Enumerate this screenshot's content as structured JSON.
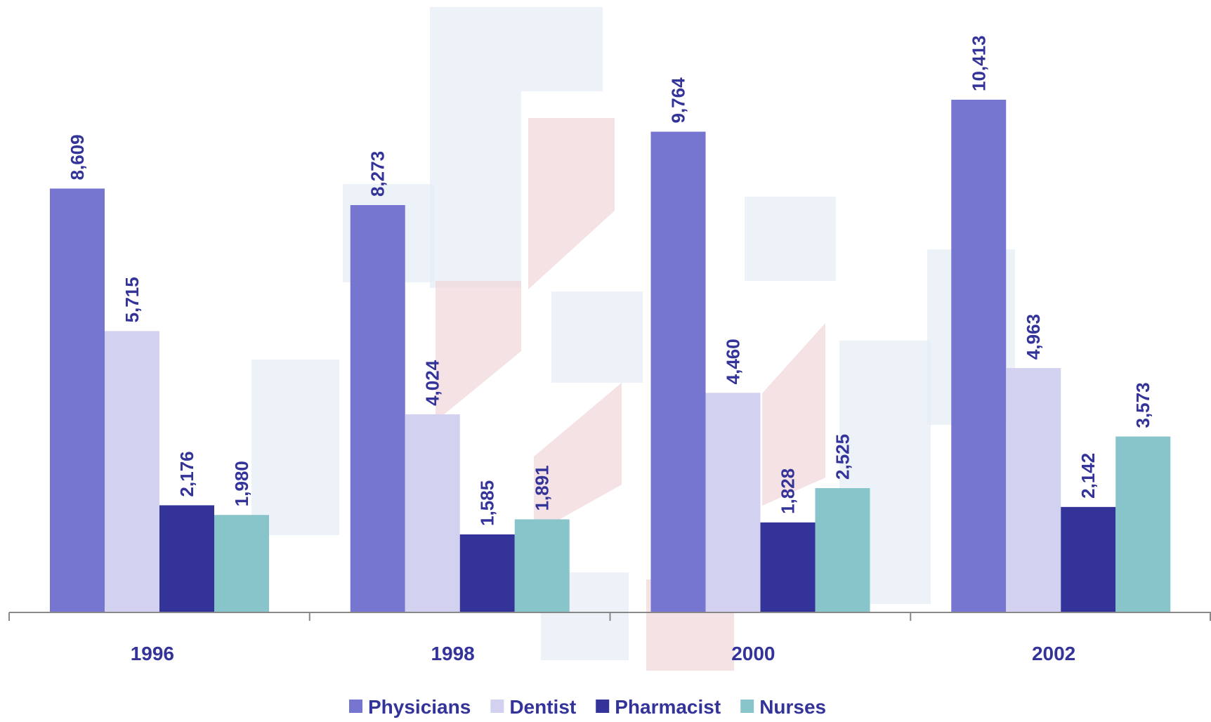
{
  "chart_data": {
    "type": "bar",
    "categories": [
      "1996",
      "1998",
      "2000",
      "2002"
    ],
    "series": [
      {
        "name": "Physicians",
        "color": "#7676d0",
        "values": [
          8609,
          8273,
          9764,
          10413
        ],
        "value_labels": [
          "8,609",
          "8,273",
          "9,764",
          "10,413"
        ]
      },
      {
        "name": "Dentist",
        "color": "#d2d2f0",
        "values": [
          5715,
          4024,
          4460,
          4963
        ],
        "value_labels": [
          "5,715",
          "4,024",
          "4,460",
          "4,963"
        ]
      },
      {
        "name": "Pharmacist",
        "color": "#33339a",
        "values": [
          2176,
          1585,
          1828,
          2142
        ],
        "value_labels": [
          "2,176",
          "1,585",
          "1,828",
          "2,142"
        ]
      },
      {
        "name": "Nurses",
        "color": "#88c5ca",
        "values": [
          1980,
          1891,
          2525,
          3573
        ],
        "value_labels": [
          "1,980",
          "1,891",
          "2,525",
          "3,573"
        ]
      }
    ],
    "legend": "bottom"
  }
}
